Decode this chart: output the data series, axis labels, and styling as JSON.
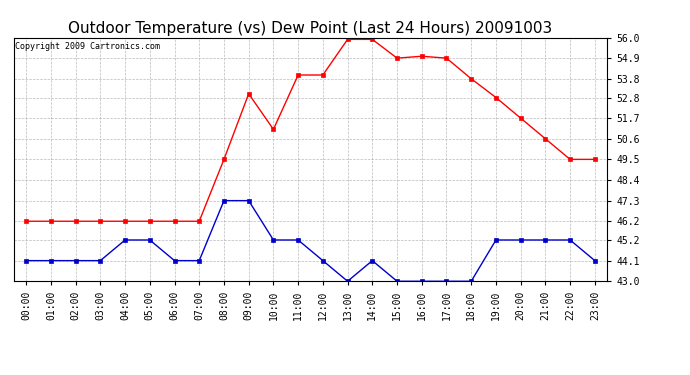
{
  "title": "Outdoor Temperature (vs) Dew Point (Last 24 Hours) 20091003",
  "copyright": "Copyright 2009 Cartronics.com",
  "x_labels": [
    "00:00",
    "01:00",
    "02:00",
    "03:00",
    "04:00",
    "05:00",
    "06:00",
    "07:00",
    "08:00",
    "09:00",
    "10:00",
    "11:00",
    "12:00",
    "13:00",
    "14:00",
    "15:00",
    "16:00",
    "17:00",
    "18:00",
    "19:00",
    "20:00",
    "21:00",
    "22:00",
    "23:00"
  ],
  "temp_values": [
    46.2,
    46.2,
    46.2,
    46.2,
    46.2,
    46.2,
    46.2,
    46.2,
    49.5,
    53.0,
    51.1,
    54.0,
    54.0,
    55.9,
    55.9,
    54.9,
    55.0,
    54.9,
    53.8,
    52.8,
    51.7,
    50.6,
    49.5,
    49.5
  ],
  "dew_values": [
    44.1,
    44.1,
    44.1,
    44.1,
    45.2,
    45.2,
    44.1,
    44.1,
    47.3,
    47.3,
    45.2,
    45.2,
    44.1,
    43.0,
    44.1,
    43.0,
    43.0,
    43.0,
    43.0,
    45.2,
    45.2,
    45.2,
    45.2,
    44.1
  ],
  "temp_color": "#ff0000",
  "dew_color": "#0000cc",
  "bg_color": "#ffffff",
  "plot_bg_color": "#ffffff",
  "grid_color": "#aaaaaa",
  "ylim_min": 43.0,
  "ylim_max": 56.0,
  "y_ticks": [
    43.0,
    44.1,
    45.2,
    46.2,
    47.3,
    48.4,
    49.5,
    50.6,
    51.7,
    52.8,
    53.8,
    54.9,
    56.0
  ],
  "title_fontsize": 11,
  "copyright_fontsize": 6,
  "tick_fontsize": 7,
  "marker_size": 3,
  "line_width": 1.0
}
